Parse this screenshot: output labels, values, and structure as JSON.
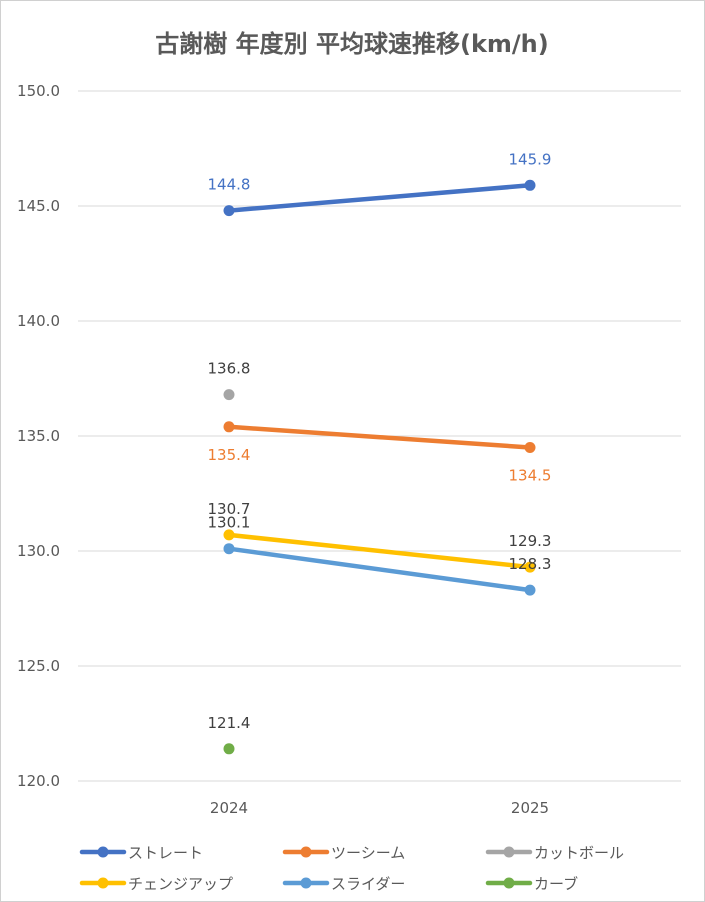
{
  "chart_data": {
    "type": "line",
    "title": "古謝樹 年度別 平均球速推移(km/h)",
    "xlabel": "",
    "ylabel": "",
    "categories": [
      "2024",
      "2025"
    ],
    "ylim": [
      120.0,
      150.0
    ],
    "yticks": [
      "120.0",
      "125.0",
      "130.0",
      "135.0",
      "140.0",
      "145.0",
      "150.0"
    ],
    "grid": true,
    "legend_position": "bottom",
    "series": [
      {
        "name": "ストレート",
        "color": "#4472C4",
        "values": [
          144.8,
          145.9
        ],
        "labels": [
          "144.8",
          "145.9"
        ],
        "label_color": "#4472C4",
        "label_pos": [
          "above",
          "above"
        ]
      },
      {
        "name": "ツーシーム",
        "color": "#ED7D31",
        "values": [
          135.4,
          134.5
        ],
        "labels": [
          "135.4",
          "134.5"
        ],
        "label_color": "#ED7D31",
        "label_pos": [
          "below",
          "below"
        ]
      },
      {
        "name": "カットボール",
        "color": "#A5A5A5",
        "values": [
          136.8,
          null
        ],
        "labels": [
          "136.8",
          ""
        ],
        "label_color": "#404040",
        "label_pos": [
          "above",
          "above"
        ]
      },
      {
        "name": "チェンジアップ",
        "color": "#FFC000",
        "values": [
          130.7,
          129.3
        ],
        "labels": [
          "130.7",
          "129.3"
        ],
        "label_color": "#404040",
        "label_pos": [
          "above",
          "above"
        ]
      },
      {
        "name": "スライダー",
        "color": "#5B9BD5",
        "values": [
          130.1,
          128.3
        ],
        "labels": [
          "130.1",
          "128.3"
        ],
        "label_color": "#404040",
        "label_pos": [
          "above",
          "above"
        ]
      },
      {
        "name": "カーブ",
        "color": "#70AD47",
        "values": [
          121.4,
          null
        ],
        "labels": [
          "121.4",
          ""
        ],
        "label_color": "#404040",
        "label_pos": [
          "above",
          "above"
        ]
      }
    ]
  }
}
